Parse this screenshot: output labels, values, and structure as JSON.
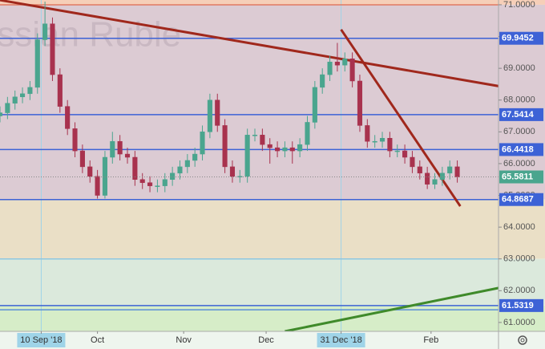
{
  "chart_data": {
    "type": "candlestick",
    "watermark": "Russian Ruble",
    "x": [
      -11,
      -9,
      -7,
      -5,
      -3,
      -1,
      1,
      3,
      5,
      7,
      9,
      11,
      13,
      15,
      17,
      19,
      21,
      23,
      25,
      27,
      29,
      31,
      33,
      35,
      37,
      39,
      41,
      43,
      45,
      47,
      49,
      51,
      53,
      55,
      57,
      59,
      61,
      63,
      65,
      67,
      69,
      71,
      73,
      75,
      77,
      79,
      81,
      83,
      85,
      87,
      89,
      91,
      93,
      95,
      97,
      99,
      101,
      103,
      105,
      107,
      109,
      111
    ],
    "open": [
      67.5,
      67.6,
      67.9,
      68.1,
      68.2,
      68.4,
      69.9,
      70.4,
      68.8,
      67.8,
      67.1,
      66.4,
      65.9,
      65.6,
      65.0,
      66.2,
      66.7,
      66.3,
      66.2,
      65.5,
      65.4,
      65.3,
      65.3,
      65.5,
      65.7,
      65.9,
      66.1,
      66.3,
      67.0,
      68.0,
      67.2,
      65.9,
      65.6,
      65.6,
      66.9,
      66.9,
      66.6,
      66.5,
      66.4,
      66.5,
      66.4,
      66.6,
      67.3,
      68.4,
      68.8,
      69.2,
      69.1,
      69.3,
      68.6,
      67.2,
      66.7,
      66.7,
      66.8,
      66.4,
      66.4,
      66.2,
      65.9,
      65.7,
      65.35,
      65.5,
      65.7,
      65.9
    ],
    "high": [
      67.8,
      68.1,
      68.3,
      68.4,
      68.6,
      70.1,
      71.1,
      70.6,
      69.0,
      68.0,
      67.3,
      66.6,
      66.1,
      65.8,
      66.4,
      67.0,
      66.9,
      66.5,
      66.4,
      65.7,
      65.6,
      65.5,
      65.7,
      65.9,
      66.1,
      66.3,
      66.5,
      67.2,
      68.2,
      68.2,
      67.4,
      66.1,
      65.8,
      67.1,
      67.1,
      67.1,
      66.8,
      66.7,
      66.7,
      66.7,
      66.8,
      67.5,
      68.6,
      69.0,
      69.4,
      69.8,
      69.5,
      69.5,
      68.8,
      67.4,
      66.9,
      67.0,
      67.0,
      66.6,
      66.6,
      66.4,
      66.1,
      65.9,
      65.7,
      65.9,
      66.1,
      66.1
    ],
    "low": [
      67.3,
      67.4,
      67.7,
      67.9,
      68.0,
      68.2,
      69.7,
      68.6,
      67.6,
      66.9,
      66.2,
      65.7,
      65.4,
      64.9,
      64.9,
      66.0,
      66.1,
      66.0,
      65.3,
      65.2,
      65.1,
      65.1,
      65.1,
      65.3,
      65.5,
      65.7,
      65.9,
      66.1,
      66.8,
      67.0,
      65.7,
      65.4,
      65.4,
      65.4,
      66.7,
      66.4,
      66.0,
      66.2,
      66.2,
      66.0,
      66.2,
      66.4,
      67.1,
      68.2,
      68.6,
      68.9,
      68.9,
      68.4,
      67.0,
      66.5,
      66.5,
      66.5,
      66.2,
      66.2,
      66.0,
      65.7,
      65.5,
      65.2,
      65.2,
      65.3,
      65.5,
      65.4
    ],
    "close": [
      67.6,
      67.9,
      68.1,
      68.2,
      68.4,
      69.9,
      70.4,
      68.8,
      67.8,
      67.1,
      66.4,
      65.9,
      65.6,
      65.0,
      66.2,
      66.7,
      66.3,
      66.2,
      65.5,
      65.4,
      65.3,
      65.3,
      65.5,
      65.7,
      65.9,
      66.1,
      66.3,
      67.0,
      68.0,
      67.2,
      65.9,
      65.6,
      65.6,
      66.9,
      66.9,
      66.6,
      66.5,
      66.4,
      66.5,
      66.4,
      66.6,
      67.3,
      68.4,
      68.8,
      69.2,
      69.1,
      69.3,
      68.6,
      67.2,
      66.7,
      66.7,
      66.8,
      66.4,
      66.4,
      66.2,
      65.9,
      65.7,
      65.35,
      65.5,
      65.7,
      65.9,
      65.5811
    ],
    "up_color": "#4aa58e",
    "down_color": "#a8324e",
    "xlim": [
      -11,
      122
    ],
    "ylim": [
      60.72,
      71.15
    ],
    "xticks": [
      {
        "value": 0,
        "label": "10 Sep '18"
      },
      {
        "value": 15,
        "label": "Oct"
      },
      {
        "value": 38,
        "label": "Nov"
      },
      {
        "value": 60,
        "label": "Dec"
      },
      {
        "value": 80,
        "label": "31 Dec '18"
      },
      {
        "value": 104,
        "label": "Feb"
      }
    ],
    "yticks": [
      {
        "value": 61,
        "label": "61.0000"
      },
      {
        "value": 62,
        "label": "62.0000"
      },
      {
        "value": 63,
        "label": "63.0000"
      },
      {
        "value": 64,
        "label": "64.0000"
      },
      {
        "value": 65,
        "label": "65.0000"
      },
      {
        "value": 66,
        "label": "66.0000"
      },
      {
        "value": 67,
        "label": "67.0000"
      },
      {
        "value": 68,
        "label": "68.0000"
      },
      {
        "value": 69,
        "label": "69.0000"
      },
      {
        "value": 70,
        "label": "70.0000"
      },
      {
        "value": 71,
        "label": "71.0000"
      }
    ],
    "zones": [
      {
        "from": 71.0,
        "to": 71.15,
        "color": "#f6cfb8"
      },
      {
        "from": 64.8687,
        "to": 71.0,
        "color": "#dccbd3"
      },
      {
        "from": 63.0,
        "to": 64.8687,
        "color": "#eadfc6"
      },
      {
        "from": 61.5319,
        "to": 63.0,
        "color": "#dbe9dc"
      },
      {
        "from": 60.72,
        "to": 61.5319,
        "color": "#d6edc8"
      }
    ],
    "levels": [
      {
        "value": 71.0,
        "color": "#e07a62"
      },
      {
        "value": 69.9452,
        "color": "#3d62d6",
        "labeled": true
      },
      {
        "value": 67.5414,
        "color": "#3d62d6",
        "labeled": true
      },
      {
        "value": 66.4418,
        "color": "#3d62d6",
        "labeled": true
      },
      {
        "value": 64.8687,
        "color": "#3d62d6",
        "labeled": true
      },
      {
        "value": 63.0,
        "color": "#8fc6e0"
      },
      {
        "value": 61.5319,
        "color": "#3d62d6",
        "labeled": true
      },
      {
        "value": 61.4,
        "color": "#5b8fd8"
      }
    ],
    "last_price_color": "#4aa58e",
    "vlines": [
      0,
      80
    ],
    "vline_color": "#9fd4e8",
    "trendlines": [
      {
        "x1": -11.2,
        "y1": 71.15,
        "x2": 123,
        "y2": 68.42,
        "color": "#a0281c"
      },
      {
        "x1": 80,
        "y1": 70.22,
        "x2": 111.8,
        "y2": 64.66,
        "color": "#a0281c"
      },
      {
        "x1": 65,
        "y1": 60.72,
        "x2": 123,
        "y2": 62.11,
        "color": "#3f8a2a"
      }
    ]
  }
}
